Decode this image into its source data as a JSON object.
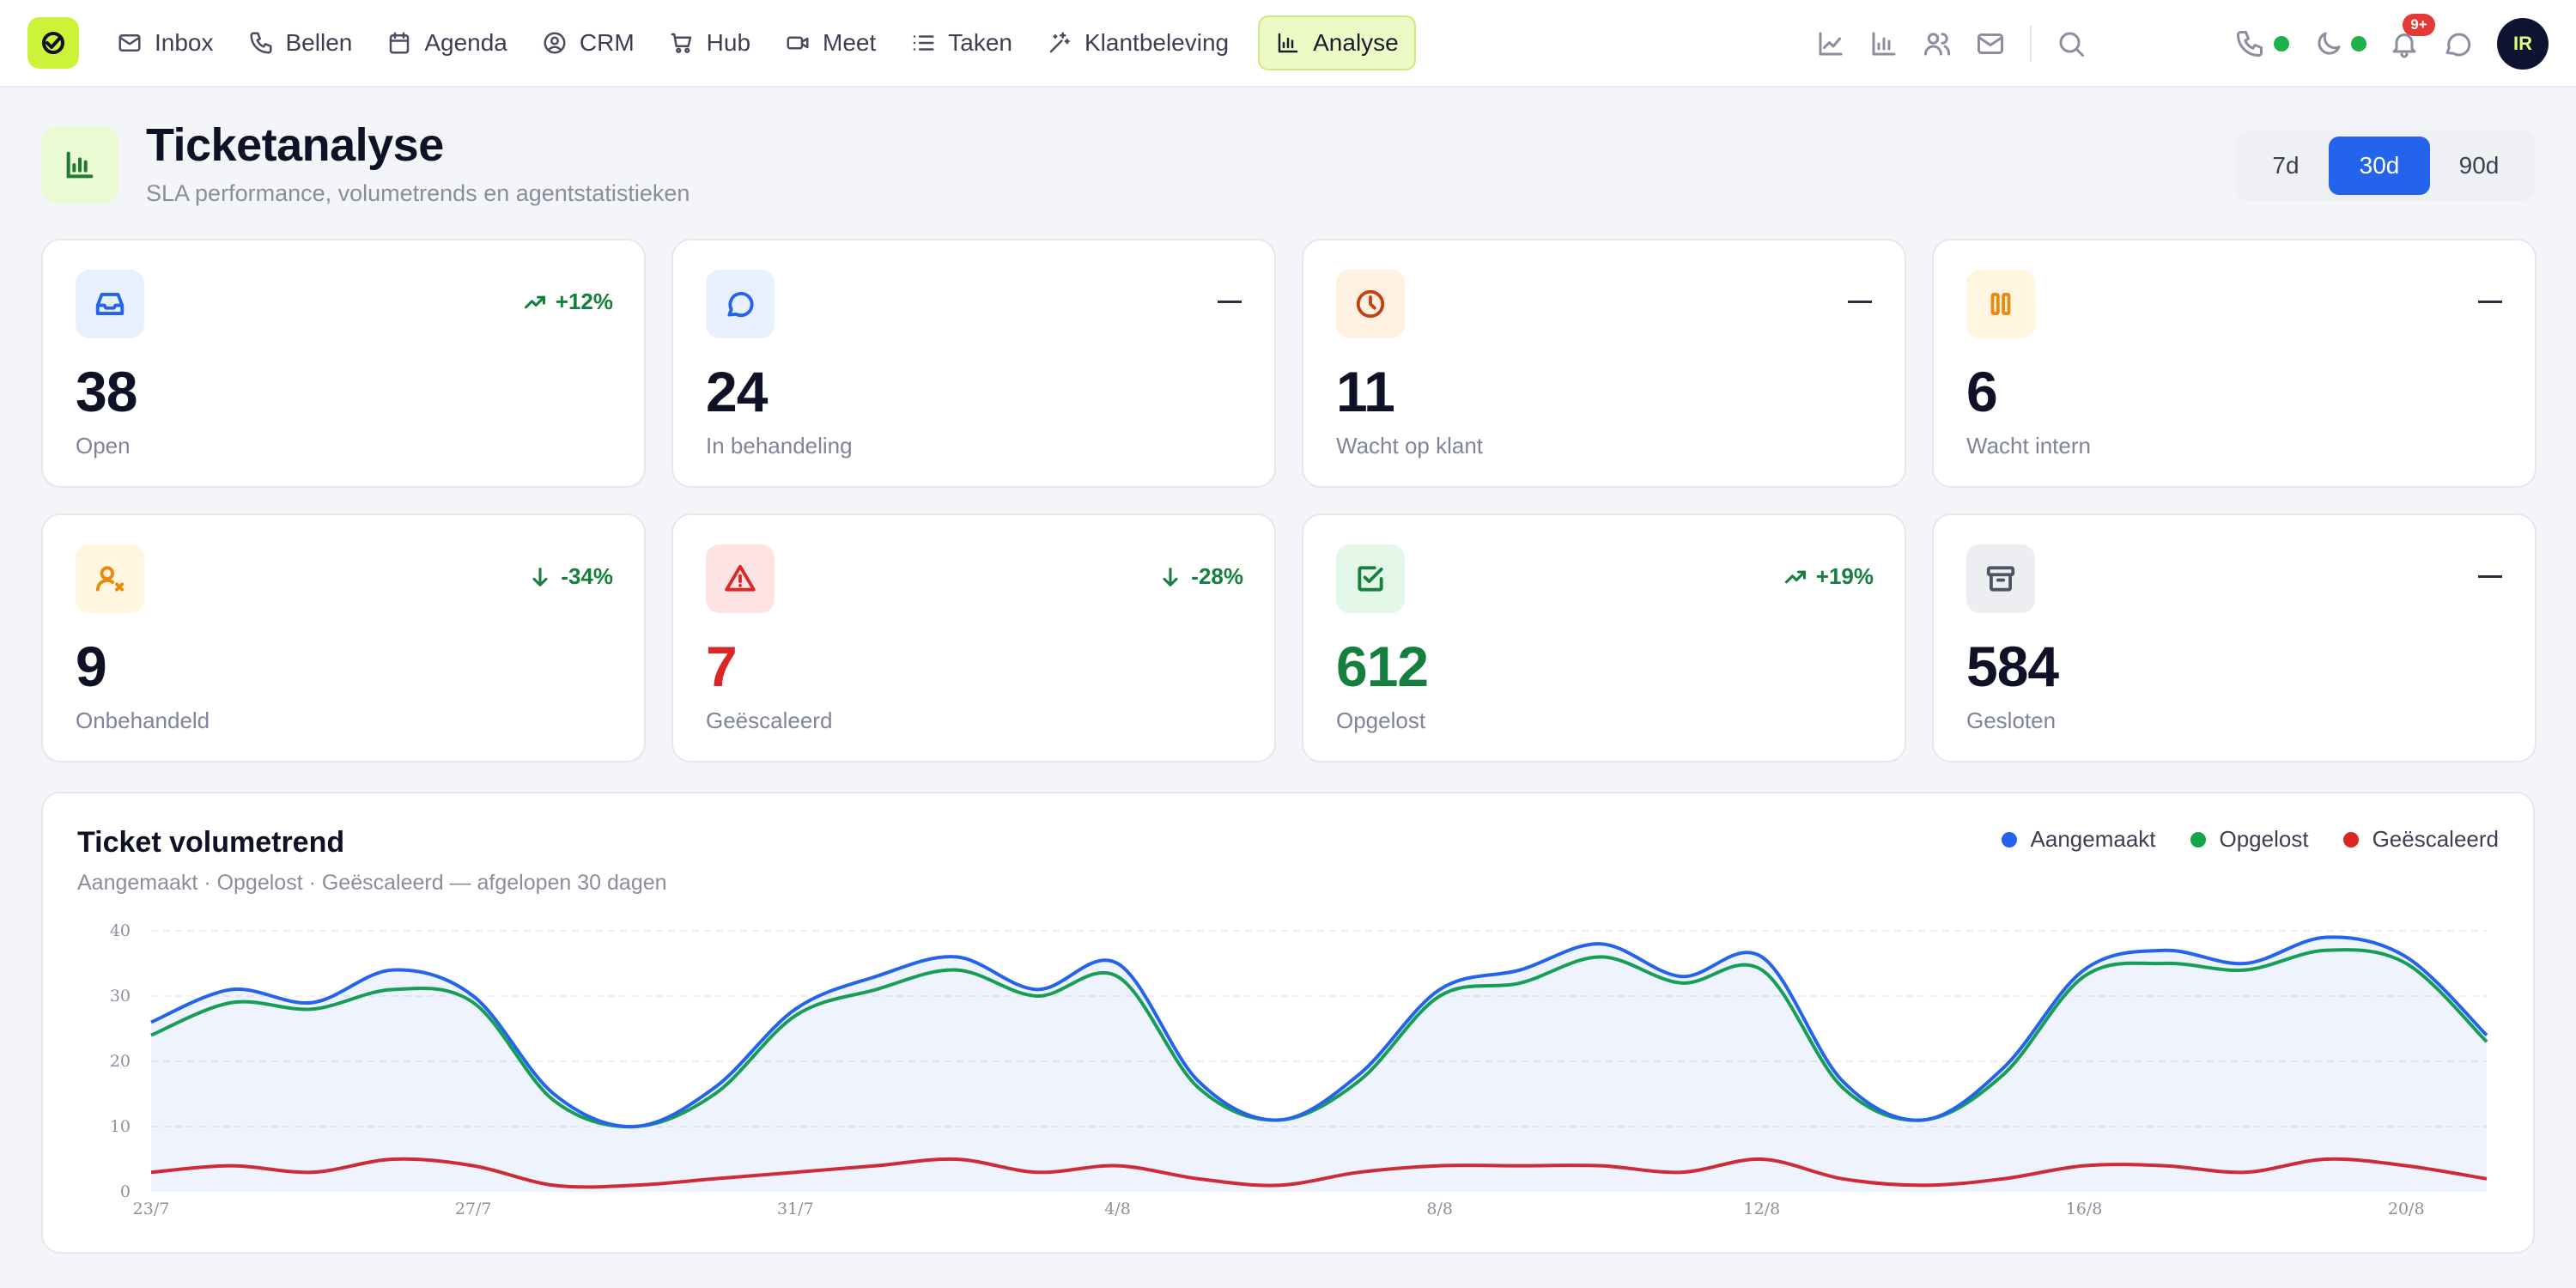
{
  "nav": {
    "items": [
      {
        "label": "Inbox",
        "icon": "mail-icon"
      },
      {
        "label": "Bellen",
        "icon": "phone-icon"
      },
      {
        "label": "Agenda",
        "icon": "calendar-icon"
      },
      {
        "label": "CRM",
        "icon": "user-circle-icon"
      },
      {
        "label": "Hub",
        "icon": "cart-icon"
      },
      {
        "label": "Meet",
        "icon": "video-icon"
      },
      {
        "label": "Taken",
        "icon": "list-icon"
      },
      {
        "label": "Klantbeleving",
        "icon": "sparkles-icon"
      },
      {
        "label": "Analyse",
        "icon": "bar-chart-icon",
        "active": true
      }
    ]
  },
  "topbar": {
    "notification_badge": "9+",
    "avatar_initials": "IR",
    "status_color": "#1cb14a"
  },
  "header": {
    "title": "Ticketanalyse",
    "subtitle": "SLA performance, volumetrends en agentstatistieken",
    "ranges": [
      "7d",
      "30d",
      "90d"
    ],
    "selected_range": "30d"
  },
  "kpis": [
    {
      "value": "38",
      "label": "Open",
      "delta": "+12%",
      "trend": "up",
      "icon": "inbox-icon",
      "color": "#2463eb"
    },
    {
      "value": "24",
      "label": "In behandeling",
      "delta": "",
      "trend": "flat",
      "icon": "chat-bubble-icon",
      "color": "#2463eb"
    },
    {
      "value": "11",
      "label": "Wacht op klant",
      "delta": "",
      "trend": "flat",
      "icon": "clock-icon",
      "color": "#c2410c"
    },
    {
      "value": "6",
      "label": "Wacht intern",
      "delta": "",
      "trend": "flat",
      "icon": "pause-icon",
      "color": "#ea8a0c"
    },
    {
      "value": "9",
      "label": "Onbehandeld",
      "delta": "-34%",
      "trend": "down",
      "icon": "user-x-icon",
      "color": "#ea8a0c"
    },
    {
      "value": "7",
      "label": "Geëscaleerd",
      "delta": "-28%",
      "trend": "down",
      "icon": "alert-triangle-icon",
      "color": "#dc2626"
    },
    {
      "value": "612",
      "label": "Opgelost",
      "delta": "+19%",
      "trend": "up",
      "icon": "check-square-icon",
      "color": "#15803d"
    },
    {
      "value": "584",
      "label": "Gesloten",
      "delta": "",
      "trend": "flat",
      "icon": "archive-icon",
      "color": "#4b5563"
    }
  ],
  "chart": {
    "title": "Ticket volumetrend",
    "subtitle": "Aangemaakt · Opgelost · Geëscaleerd — afgelopen 30 dagen",
    "legend": [
      {
        "name": "Aangemaakt",
        "color": "#2463eb"
      },
      {
        "name": "Opgelost",
        "color": "#16a34a"
      },
      {
        "name": "Geëscaleerd",
        "color": "#dc2626"
      }
    ]
  },
  "chart_data": {
    "type": "line",
    "x": [
      "23/7",
      "24/7",
      "25/7",
      "26/7",
      "27/7",
      "28/7",
      "29/7",
      "30/7",
      "31/7",
      "1/8",
      "2/8",
      "3/8",
      "4/8",
      "5/8",
      "6/8",
      "7/8",
      "8/8",
      "9/8",
      "10/8",
      "11/8",
      "12/8",
      "13/8",
      "14/8",
      "15/8",
      "16/8",
      "17/8",
      "18/8",
      "19/8",
      "20/8",
      "21/8"
    ],
    "xticks": [
      "23/7",
      "27/7",
      "31/7",
      "4/8",
      "8/8",
      "12/8",
      "16/8",
      "20/8"
    ],
    "yticks": [
      0,
      10,
      20,
      30,
      40
    ],
    "ylim": [
      0,
      40
    ],
    "grid": true,
    "legend_position": "top-right",
    "series": [
      {
        "name": "Aangemaakt",
        "color": "#2463eb",
        "area": true,
        "values": [
          26,
          31,
          29,
          34,
          30,
          15,
          10,
          16,
          28,
          33,
          36,
          31,
          35,
          17,
          11,
          18,
          31,
          34,
          38,
          33,
          36,
          17,
          11,
          19,
          34,
          37,
          35,
          39,
          36,
          24
        ]
      },
      {
        "name": "Opgelost",
        "color": "#16a34a",
        "values": [
          24,
          29,
          28,
          31,
          29,
          14,
          10,
          15,
          27,
          31,
          34,
          30,
          33,
          16,
          11,
          17,
          30,
          32,
          36,
          32,
          34,
          16,
          11,
          18,
          33,
          35,
          34,
          37,
          35,
          23
        ]
      },
      {
        "name": "Geëscaleerd",
        "color": "#dc2626",
        "values": [
          3,
          4,
          3,
          5,
          4,
          1,
          1,
          2,
          3,
          4,
          5,
          3,
          4,
          2,
          1,
          3,
          4,
          4,
          4,
          3,
          5,
          2,
          1,
          2,
          4,
          4,
          3,
          5,
          4,
          2
        ]
      }
    ]
  }
}
